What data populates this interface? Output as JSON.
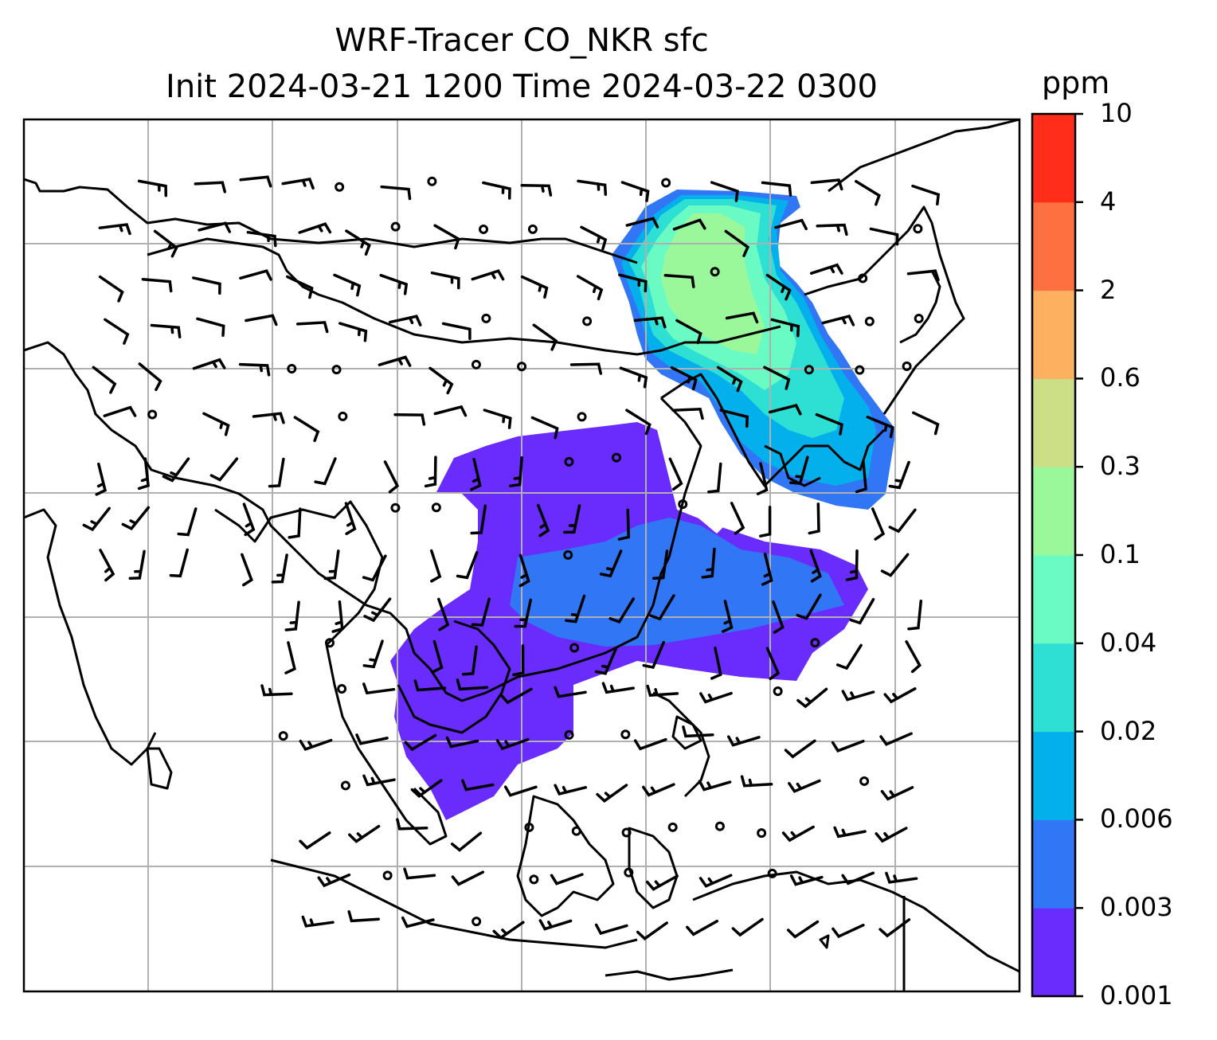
{
  "title": {
    "line1": "WRF-Tracer CO_NKR sfc",
    "line2": "Init 2024-03-21 1200 Time 2024-03-22 0300"
  },
  "colorbar": {
    "unit": "ppm",
    "levels": [
      "0.001",
      "0.003",
      "0.006",
      "0.02",
      "0.04",
      "0.1",
      "0.3",
      "0.6",
      "2",
      "4",
      "10"
    ],
    "colors": [
      "#6a2bfd",
      "#3176f4",
      "#04b0ec",
      "#2ee0d4",
      "#6afbc4",
      "#9af89a",
      "#ccdf86",
      "#fdb060",
      "#fe7040",
      "#ff2d1a"
    ]
  },
  "map": {
    "frame_color": "#000000",
    "grid_color": "#b0b0b0",
    "coastline_color": "#000000",
    "wind_symbols": "wind barbs (knots) and calm circles"
  }
}
